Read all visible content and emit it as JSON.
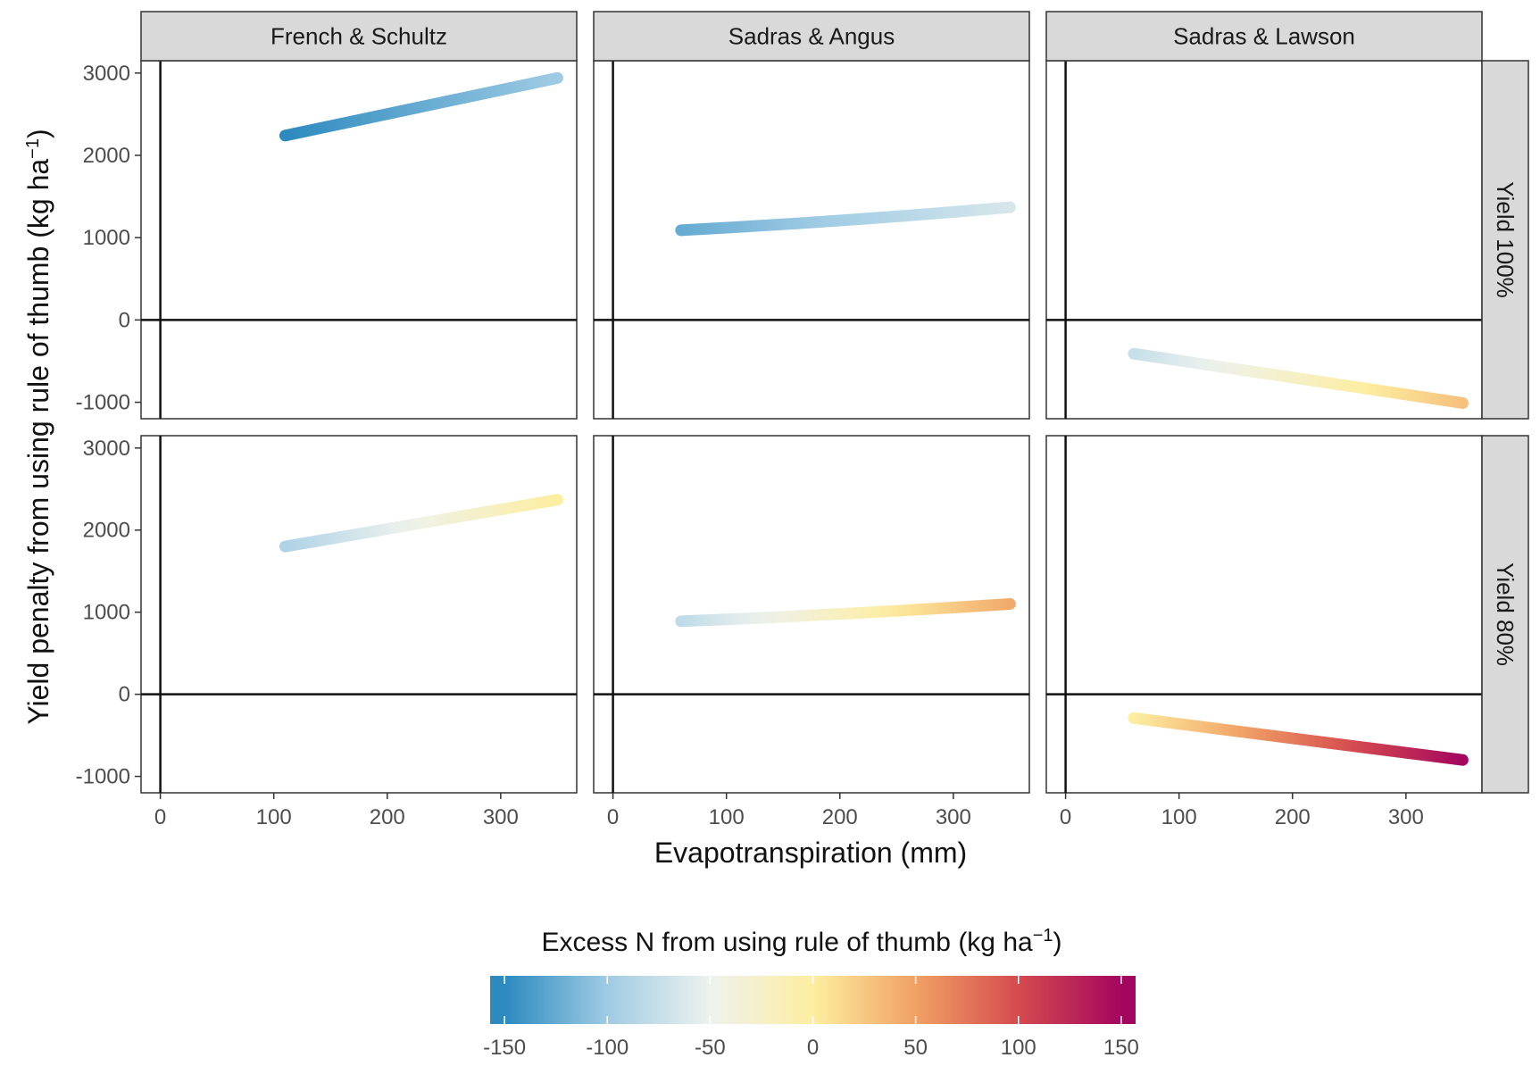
{
  "chart_data": {
    "type": "scatter",
    "layout": "facet-grid",
    "xlabel": "Evapotranspiration (mm)",
    "ylabel": "Yield penalty from using rule of thumb (kg ha",
    "ylabel_sup": "−1",
    "ylabel_close": ")",
    "xlim": [
      -17,
      367
    ],
    "ylim": [
      -1200,
      3150
    ],
    "xticks": [
      0,
      100,
      200,
      300
    ],
    "xtick_labels": [
      "0",
      "100",
      "200",
      "300"
    ],
    "yticks": [
      -1000,
      0,
      1000,
      2000,
      3000
    ],
    "ytick_labels": [
      "-1000",
      "0",
      "1000",
      "2000",
      "3000"
    ],
    "columns": [
      "French & Schultz",
      "Sadras & Angus",
      "Sadras & Lawson"
    ],
    "rows": [
      "Yield 100%",
      "Yield 80%"
    ],
    "panels": [
      {
        "row": 0,
        "col": 0,
        "x": [
          110,
          350
        ],
        "y": [
          2240,
          2940
        ],
        "excess_n": [
          -150,
          -100
        ]
      },
      {
        "row": 0,
        "col": 1,
        "x": [
          60,
          350
        ],
        "y": [
          1090,
          1370
        ],
        "excess_n": [
          -125,
          -65
        ]
      },
      {
        "row": 0,
        "col": 2,
        "x": [
          60,
          350
        ],
        "y": [
          -410,
          -1010
        ],
        "excess_n": [
          -75,
          30
        ]
      },
      {
        "row": 1,
        "col": 0,
        "x": [
          110,
          350
        ],
        "y": [
          1800,
          2370
        ],
        "excess_n": [
          -90,
          0
        ]
      },
      {
        "row": 1,
        "col": 1,
        "x": [
          60,
          350
        ],
        "y": [
          890,
          1100
        ],
        "excess_n": [
          -80,
          45
        ]
      },
      {
        "row": 1,
        "col": 2,
        "x": [
          60,
          350
        ],
        "y": [
          -290,
          -800
        ],
        "excess_n": [
          0,
          150
        ]
      }
    ],
    "colorbar": {
      "title": "Excess N from using rule of thumb (kg ha",
      "title_sup": "−1",
      "title_close": ")",
      "range": [
        -157,
        157
      ],
      "ticks": [
        -150,
        -100,
        -50,
        0,
        50,
        100,
        150
      ],
      "tick_labels": [
        "-150",
        "-100",
        "-50",
        "0",
        "50",
        "100",
        "150"
      ],
      "colors": [
        "#2c8abf",
        "#9fcbe4",
        "#eef2ee",
        "#fdeea0",
        "#f1a165",
        "#d54b4f",
        "#a4065f"
      ]
    }
  },
  "style": {
    "strip_fill": "#d9d9d9",
    "panel_border": "#333333",
    "zero_line": "#111111"
  }
}
